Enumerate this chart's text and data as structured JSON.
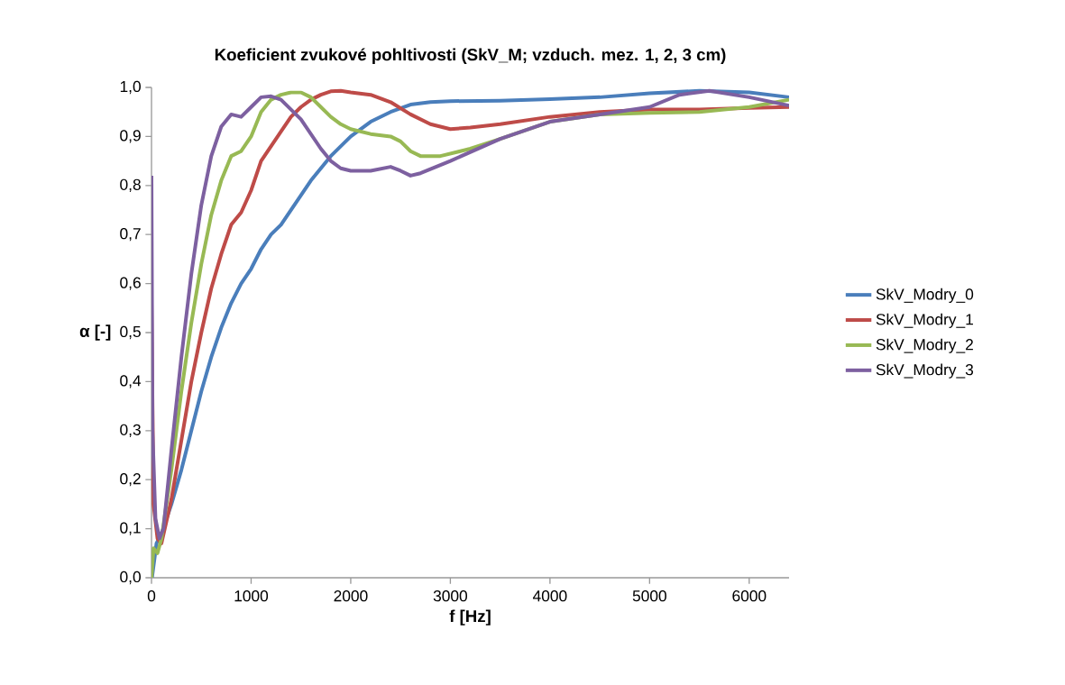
{
  "chart_data": {
    "type": "line",
    "title": "Koeficient zvukové pohltivosti (SkV_M; vzduch. mez. 1, 2, 3 cm)",
    "xlabel": "f [Hz]",
    "ylabel": "α [-]",
    "xlim": [
      0,
      6400
    ],
    "ylim": [
      0,
      1.0
    ],
    "xticks": [
      0,
      1000,
      2000,
      3000,
      4000,
      5000,
      6000
    ],
    "yticks": [
      {
        "value": 0,
        "label": "0,0"
      },
      {
        "value": 0.1,
        "label": "0,1"
      },
      {
        "value": 0.2,
        "label": "0,2"
      },
      {
        "value": 0.3,
        "label": "0,3"
      },
      {
        "value": 0.4,
        "label": "0,4"
      },
      {
        "value": 0.5,
        "label": "0,5"
      },
      {
        "value": 0.6,
        "label": "0,6"
      },
      {
        "value": 0.7,
        "label": "0,7"
      },
      {
        "value": 0.8,
        "label": "0,8"
      },
      {
        "value": 0.9,
        "label": "0,9"
      },
      {
        "value": 1.0,
        "label": "1,0"
      }
    ],
    "grid": false,
    "legend": "right",
    "marker": "none",
    "line_style": "solid",
    "series": [
      {
        "name": "SkV_Modry_0",
        "color": "#4a7ebb",
        "x": [
          5,
          50,
          100,
          200,
          300,
          400,
          500,
          600,
          700,
          800,
          900,
          1000,
          1100,
          1200,
          1300,
          1400,
          1500,
          1600,
          1800,
          2000,
          2200,
          2400,
          2600,
          2800,
          3000,
          3500,
          4000,
          4500,
          5000,
          5500,
          6000,
          6400
        ],
        "values": [
          0.0,
          0.07,
          0.09,
          0.15,
          0.22,
          0.3,
          0.38,
          0.45,
          0.51,
          0.56,
          0.6,
          0.63,
          0.67,
          0.7,
          0.72,
          0.75,
          0.78,
          0.81,
          0.86,
          0.9,
          0.93,
          0.95,
          0.965,
          0.97,
          0.972,
          0.973,
          0.976,
          0.98,
          0.988,
          0.993,
          0.99,
          0.98
        ]
      },
      {
        "name": "SkV_Modry_1",
        "color": "#be4b48",
        "x": [
          0,
          20,
          60,
          100,
          200,
          300,
          400,
          500,
          600,
          700,
          800,
          900,
          1000,
          1100,
          1200,
          1300,
          1400,
          1500,
          1600,
          1700,
          1800,
          1900,
          2000,
          2200,
          2400,
          2600,
          2800,
          3000,
          3200,
          3500,
          4000,
          4500,
          5000,
          5500,
          6000,
          6400
        ],
        "values": [
          0.56,
          0.15,
          0.08,
          0.07,
          0.16,
          0.28,
          0.4,
          0.5,
          0.59,
          0.66,
          0.72,
          0.745,
          0.79,
          0.85,
          0.88,
          0.91,
          0.94,
          0.96,
          0.975,
          0.985,
          0.992,
          0.993,
          0.99,
          0.985,
          0.97,
          0.945,
          0.925,
          0.915,
          0.918,
          0.925,
          0.94,
          0.95,
          0.955,
          0.955,
          0.958,
          0.96
        ]
      },
      {
        "name": "SkV_Modry_2",
        "color": "#98b954",
        "x": [
          0,
          20,
          60,
          100,
          200,
          300,
          400,
          500,
          600,
          700,
          800,
          900,
          1000,
          1100,
          1200,
          1300,
          1400,
          1500,
          1600,
          1700,
          1800,
          1900,
          2000,
          2200,
          2400,
          2500,
          2600,
          2700,
          2900,
          3200,
          3500,
          4000,
          4500,
          5000,
          5500,
          6000,
          6400
        ],
        "values": [
          0.0,
          0.06,
          0.05,
          0.08,
          0.22,
          0.38,
          0.52,
          0.64,
          0.74,
          0.81,
          0.86,
          0.87,
          0.9,
          0.95,
          0.975,
          0.985,
          0.99,
          0.99,
          0.98,
          0.96,
          0.94,
          0.925,
          0.915,
          0.905,
          0.9,
          0.89,
          0.87,
          0.86,
          0.86,
          0.875,
          0.895,
          0.93,
          0.945,
          0.948,
          0.95,
          0.96,
          0.975
        ]
      },
      {
        "name": "SkV_Modry_3",
        "color": "#7d60a0",
        "x": [
          0,
          10,
          40,
          80,
          120,
          200,
          300,
          400,
          500,
          600,
          700,
          800,
          900,
          1000,
          1100,
          1200,
          1300,
          1400,
          1500,
          1600,
          1700,
          1800,
          1900,
          2000,
          2200,
          2400,
          2500,
          2600,
          2700,
          3000,
          3500,
          4000,
          4500,
          5000,
          5300,
          5600,
          6000,
          6400
        ],
        "values": [
          0.82,
          0.3,
          0.12,
          0.08,
          0.1,
          0.26,
          0.45,
          0.62,
          0.76,
          0.86,
          0.92,
          0.945,
          0.94,
          0.96,
          0.98,
          0.982,
          0.975,
          0.955,
          0.935,
          0.905,
          0.875,
          0.85,
          0.835,
          0.83,
          0.83,
          0.838,
          0.83,
          0.82,
          0.825,
          0.85,
          0.895,
          0.93,
          0.945,
          0.96,
          0.985,
          0.993,
          0.98,
          0.963
        ]
      }
    ]
  }
}
